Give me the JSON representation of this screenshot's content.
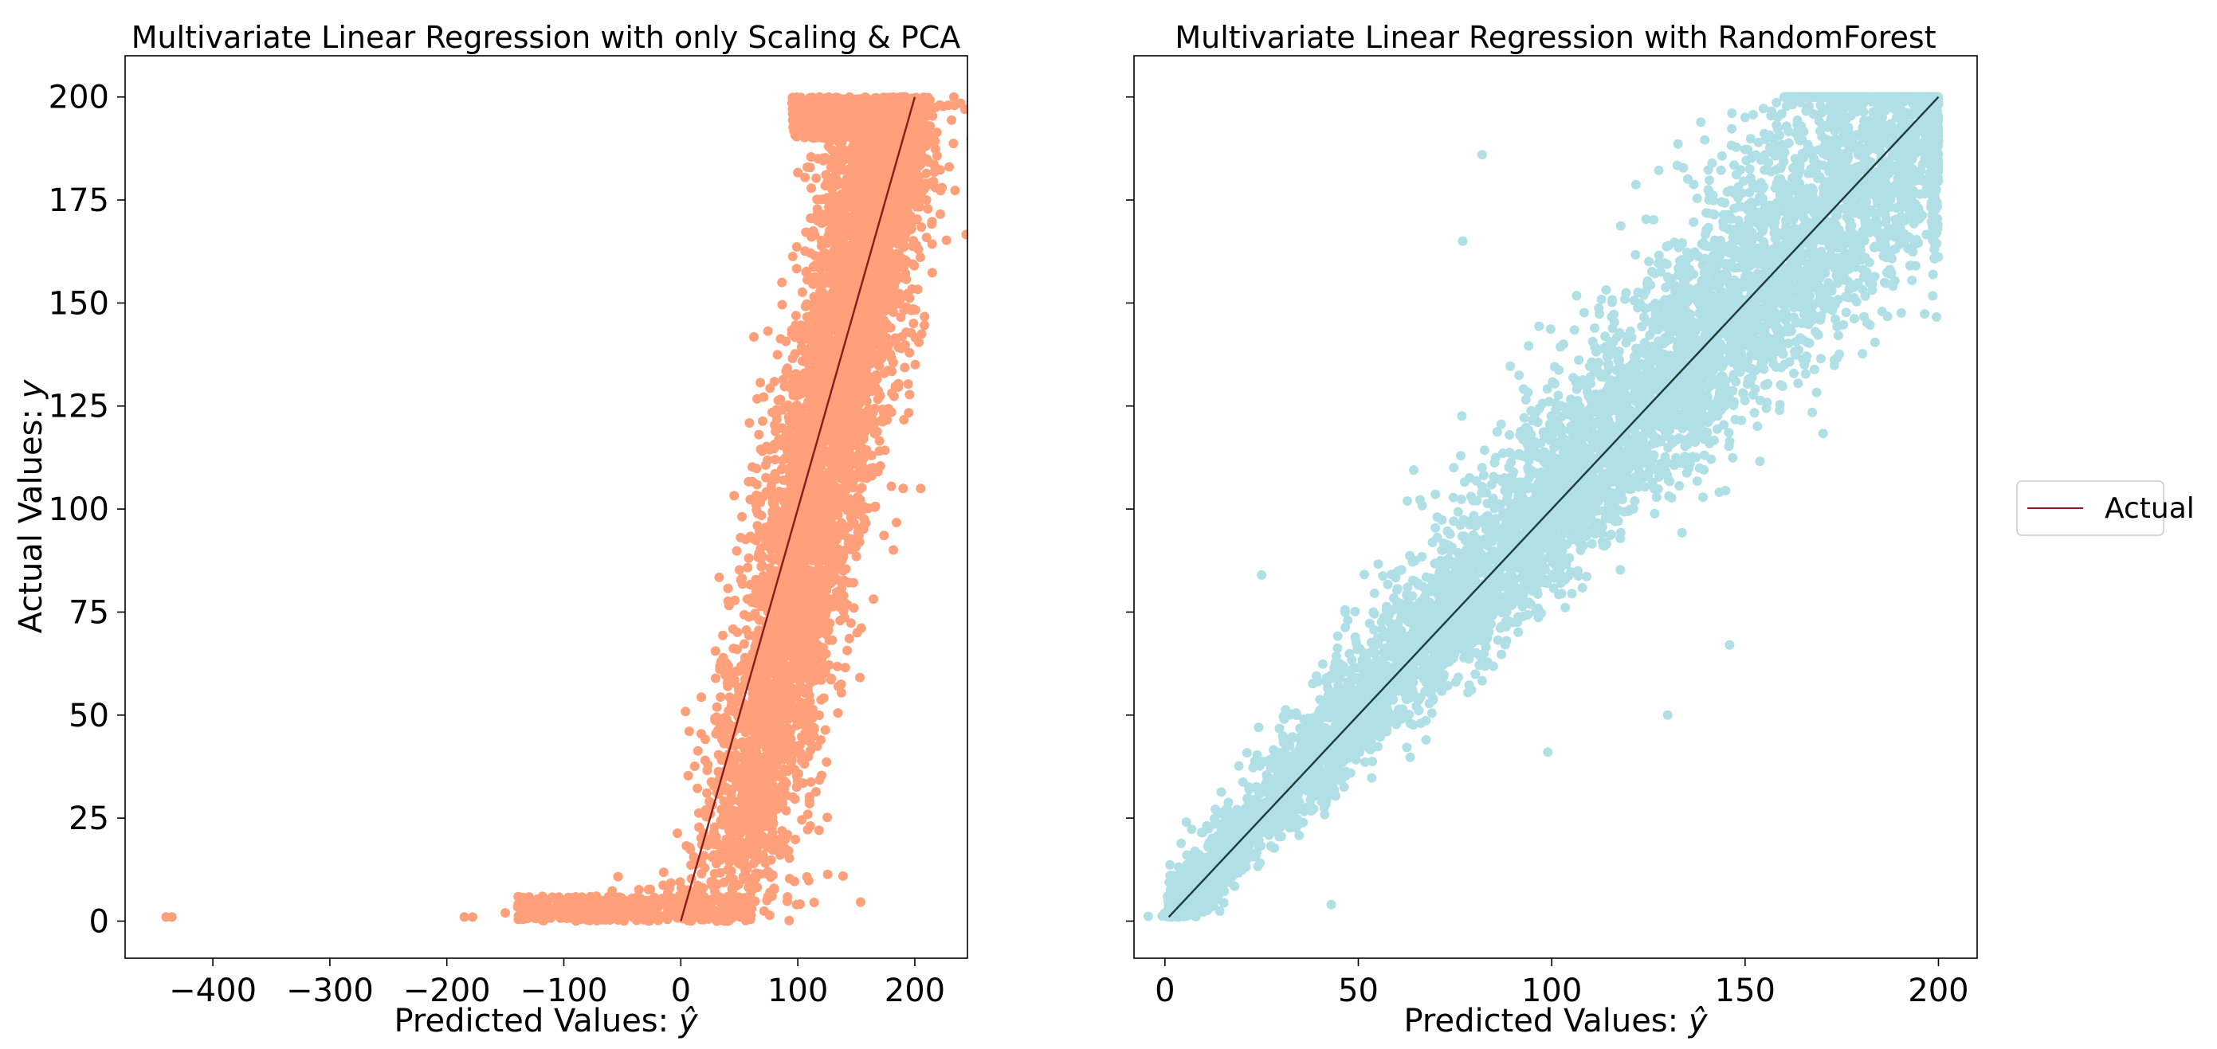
{
  "chart_data": [
    {
      "type": "scatter",
      "title": "Multivariate Linear Regression with only Scaling & PCA",
      "xlabel": "Predicted Values: ",
      "xlabel_symbol": "ŷ",
      "ylabel": "Actual Values: ",
      "ylabel_symbol": "y",
      "xlim": [
        -475,
        245
      ],
      "ylim": [
        -9,
        210
      ],
      "xticks": [
        -400,
        -300,
        -200,
        -100,
        0,
        100,
        200
      ],
      "xtick_labels": [
        "−400",
        "−300",
        "−200",
        "−100",
        "0",
        "100",
        "200"
      ],
      "yticks": [
        0,
        25,
        50,
        75,
        100,
        125,
        150,
        175,
        200
      ],
      "ytick_labels": [
        "0",
        "25",
        "50",
        "75",
        "100",
        "125",
        "150",
        "175",
        "200"
      ],
      "grid": false,
      "point_color": "#FFA07A",
      "line_color": "#8B1A1A",
      "reference_line": {
        "x": [
          0,
          200
        ],
        "y": [
          0,
          200
        ]
      },
      "scatter_description": "dense band of predicted vs actual points; spread widens at low predicted values with outliers near x=-440 and x=-180",
      "outlier_points": [
        {
          "x": -440,
          "y": 1
        },
        {
          "x": -435,
          "y": 1
        },
        {
          "x": -185,
          "y": 1
        },
        {
          "x": -178,
          "y": 1
        },
        {
          "x": -150,
          "y": 2
        },
        {
          "x": 190,
          "y": 105
        },
        {
          "x": 205,
          "y": 105
        },
        {
          "x": 210,
          "y": 175
        },
        {
          "x": 208,
          "y": 191
        }
      ]
    },
    {
      "type": "scatter",
      "title": "Multivariate Linear Regression with RandomForest",
      "xlabel": "Predicted Values: ",
      "xlabel_symbol": "ŷ",
      "xlim": [
        -8,
        210
      ],
      "ylim": [
        -9,
        210
      ],
      "xticks": [
        0,
        50,
        100,
        150,
        200
      ],
      "xtick_labels": [
        "0",
        "50",
        "100",
        "150",
        "200"
      ],
      "yticks": [
        0,
        25,
        50,
        75,
        100,
        125,
        150,
        175,
        200
      ],
      "grid": false,
      "point_color": "#B0E0E6",
      "line_color": "#1F3A3A",
      "reference_line": {
        "x": [
          1,
          200
        ],
        "y": [
          1,
          200
        ]
      },
      "outlier_points": [
        {
          "x": 43,
          "y": 4
        },
        {
          "x": 146,
          "y": 67
        },
        {
          "x": 130,
          "y": 50
        },
        {
          "x": 77,
          "y": 165
        },
        {
          "x": 82,
          "y": 186
        },
        {
          "x": 99,
          "y": 41
        },
        {
          "x": 25,
          "y": 84
        }
      ]
    }
  ],
  "legend": {
    "position": "right",
    "entries": [
      {
        "label": "Actual",
        "color": "#8B1A1A"
      }
    ]
  }
}
